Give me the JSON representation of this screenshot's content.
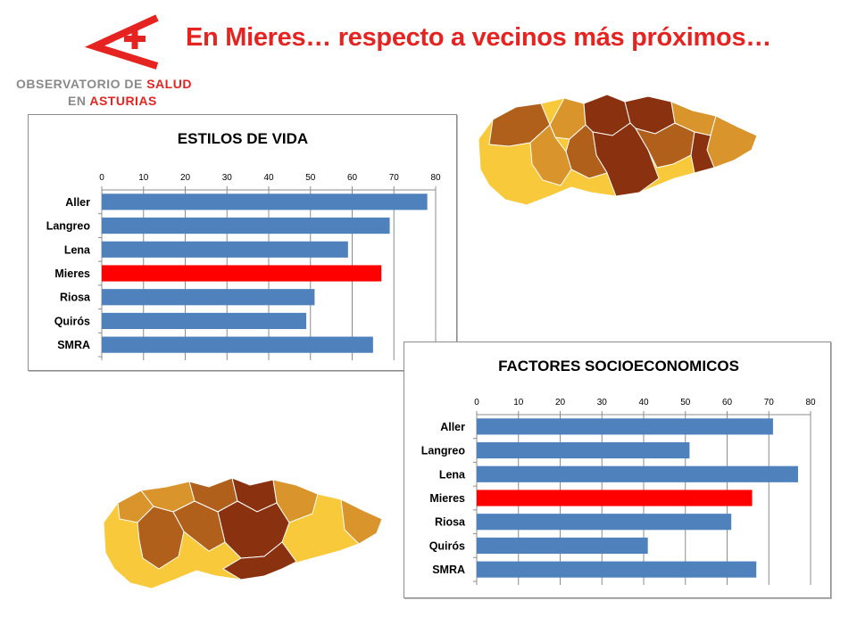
{
  "logo": {
    "line1_a": "OBSERVATORIO DE ",
    "line1_b": "SALUD",
    "line2_a": "EN ",
    "line2_b": "ASTURIAS"
  },
  "slide": {
    "title": "En Mieres… respecto a vecinos más próximos…"
  },
  "colors": {
    "bar": "#4f81bd",
    "highlight": "#ff0000",
    "title_red": "#e52421",
    "map_light": "#f8c93a",
    "map_mid": "#d9952b",
    "map_midbrown": "#b1601c",
    "map_dark": "#8a3110"
  },
  "chart_data": [
    {
      "type": "bar",
      "orientation": "horizontal",
      "title": "ESTILOS DE VIDA",
      "categories": [
        "Aller",
        "Langreo",
        "Lena",
        "Mieres",
        "Riosa",
        "Quirós",
        "SMRA"
      ],
      "values": [
        78,
        69,
        59,
        67,
        51,
        49,
        65
      ],
      "highlight": "Mieres",
      "xlim": [
        0,
        80
      ],
      "ticks": [
        0,
        10,
        20,
        30,
        40,
        50,
        60,
        70,
        80
      ],
      "xaxis_position": "top",
      "grid": true
    },
    {
      "type": "bar",
      "orientation": "horizontal",
      "title": "FACTORES SOCIOECONOMICOS",
      "categories": [
        "Aller",
        "Langreo",
        "Lena",
        "Mieres",
        "Riosa",
        "Quirós",
        "SMRA"
      ],
      "values": [
        71,
        51,
        77,
        66,
        61,
        41,
        67
      ],
      "highlight": "Mieres",
      "xlim": [
        0,
        80
      ],
      "ticks": [
        0,
        10,
        20,
        30,
        40,
        50,
        60,
        70,
        80
      ],
      "xaxis_position": "top",
      "grid": true
    }
  ]
}
